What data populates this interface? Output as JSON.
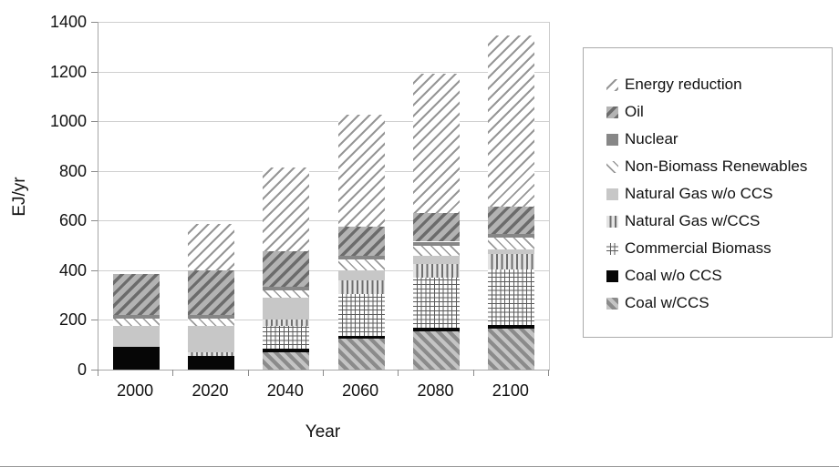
{
  "chart_data": {
    "type": "bar",
    "stacked": true,
    "title": "",
    "xlabel": "Year",
    "ylabel": "EJ/yr",
    "ylim": [
      0,
      1400
    ],
    "yticks": [
      0,
      200,
      400,
      600,
      800,
      1000,
      1200,
      1400
    ],
    "grid": "horizontal",
    "legend_position": "right",
    "categories": [
      "2000",
      "2020",
      "2040",
      "2060",
      "2080",
      "2100"
    ],
    "series": [
      {
        "name": "Energy reduction",
        "pattern": "diagonal-light",
        "values": [
          0,
          185,
          340,
          450,
          560,
          690
        ]
      },
      {
        "name": "Oil",
        "pattern": "diagonal-gray",
        "values": [
          165,
          180,
          140,
          115,
          115,
          110
        ]
      },
      {
        "name": "Nuclear",
        "pattern": "solid-dark-gray",
        "values": [
          15,
          15,
          15,
          15,
          15,
          15
        ]
      },
      {
        "name": "Non-Biomass Renewables",
        "pattern": "backslash-light",
        "values": [
          30,
          30,
          30,
          45,
          40,
          45
        ]
      },
      {
        "name": "Natural Gas w/o CCS",
        "pattern": "solid-light-gray",
        "values": [
          85,
          105,
          90,
          40,
          35,
          20
        ]
      },
      {
        "name": "Natural Gas w/CCS",
        "pattern": "vertical-lines",
        "values": [
          0,
          15,
          25,
          55,
          55,
          60
        ]
      },
      {
        "name": "Commercial Biomass",
        "pattern": "crosshatch",
        "values": [
          0,
          0,
          90,
          170,
          200,
          225
        ]
      },
      {
        "name": "Coal w/o CCS",
        "pattern": "solid-black",
        "values": [
          90,
          55,
          15,
          10,
          15,
          15
        ]
      },
      {
        "name": "Coal w/CCS",
        "pattern": "backslash-gray",
        "values": [
          0,
          0,
          70,
          125,
          155,
          165
        ]
      }
    ],
    "colors": {
      "gridline": "#cfcfcf",
      "axis": "#a6a6a6",
      "tick": "#8a8a8a",
      "text": "#111111",
      "hatch_dark": "#6c6c6c",
      "solid_black": "#060606",
      "solid_dark_gray": "#878787",
      "solid_light_gray": "#c7c7c7"
    }
  }
}
